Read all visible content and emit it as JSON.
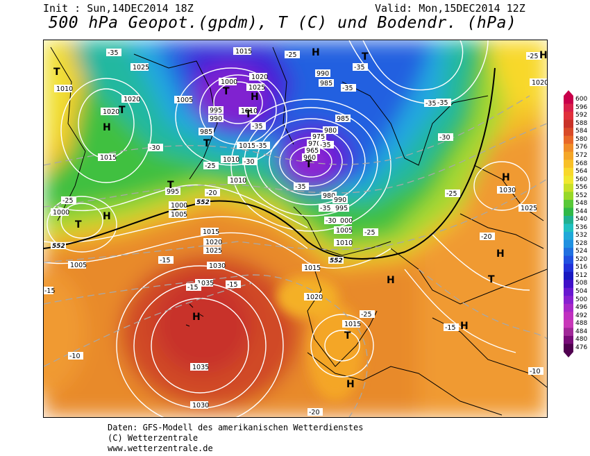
{
  "header": {
    "init": "Init : Sun,14DEC2014 18Z",
    "valid": "Valid: Mon,15DEC2014 12Z",
    "title": "500 hPa Geopot.(gpdm), T (C) und Bodendr. (hPa)"
  },
  "legend": {
    "ticks": [
      "600",
      "596",
      "592",
      "588",
      "584",
      "580",
      "576",
      "572",
      "568",
      "564",
      "560",
      "556",
      "552",
      "548",
      "544",
      "540",
      "536",
      "532",
      "528",
      "524",
      "520",
      "516",
      "512",
      "508",
      "504",
      "500",
      "496",
      "492",
      "488",
      "484",
      "480",
      "476"
    ],
    "colors": [
      "#c8004a",
      "#d8204a",
      "#e0303c",
      "#c83228",
      "#d84a28",
      "#e86828",
      "#f08c28",
      "#f4a628",
      "#f8c028",
      "#f8d82c",
      "#f0e830",
      "#c8e028",
      "#98d828",
      "#58c838",
      "#30b848",
      "#20b090",
      "#20c0c0",
      "#20a8d8",
      "#2090e0",
      "#2070e0",
      "#2050e0",
      "#2030d8",
      "#1818c0",
      "#4010c8",
      "#6818d0",
      "#8820d0",
      "#a828c8",
      "#c030c0",
      "#c838b8",
      "#a02898",
      "#780c78",
      "#500050"
    ]
  },
  "map": {
    "pressure_labels": [
      "1015",
      "1025",
      "1010",
      "1005",
      "1020",
      "1000",
      "995",
      "990",
      "985",
      "1030",
      "1035",
      "980",
      "975",
      "970",
      "965",
      "960"
    ],
    "temp_labels": [
      "-35",
      "-30",
      "-25",
      "-20",
      "-15",
      "-10"
    ],
    "isoheight_labels": [
      "552",
      "552",
      "552"
    ],
    "centers": [
      "H",
      "T"
    ]
  },
  "footer": {
    "line1": "Daten: GFS-Modell des amerikanischen Wetterdienstes",
    "line2": "(C) Wetterzentrale",
    "line3": "www.wetterzentrale.de"
  }
}
